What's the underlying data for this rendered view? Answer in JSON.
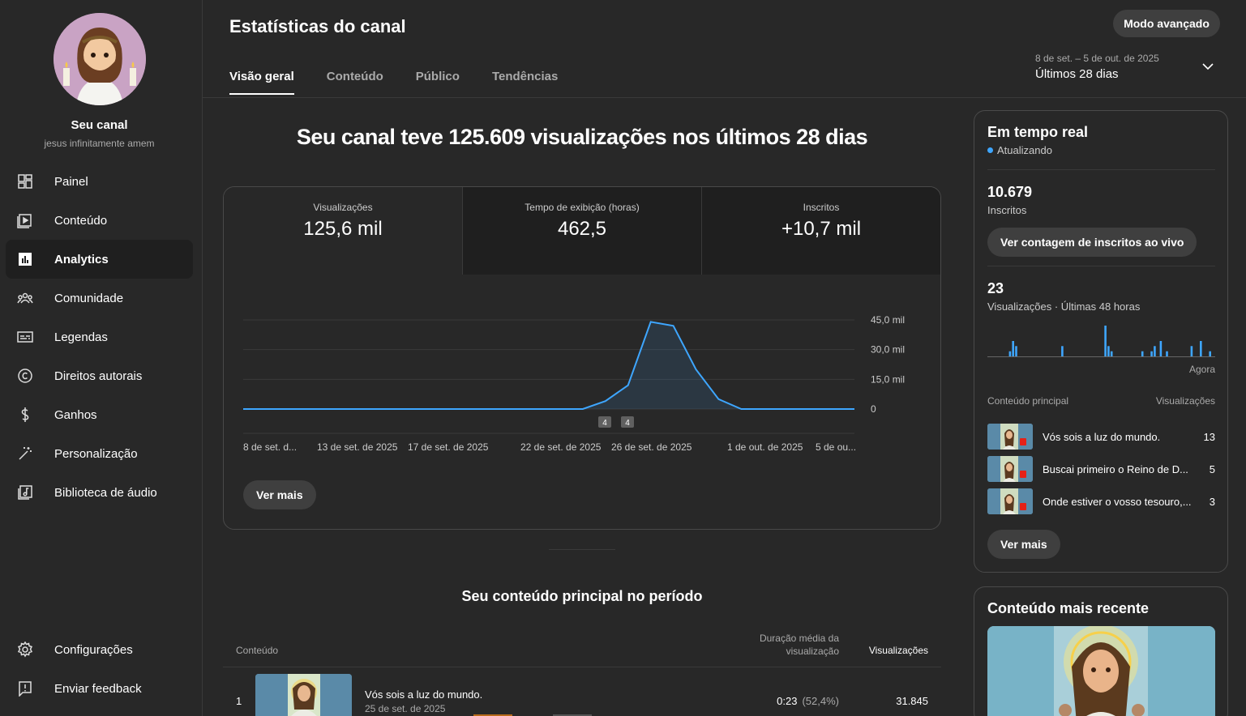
{
  "sidebar": {
    "channel_name": "Seu canal",
    "channel_handle": "jesus infinitamente amem",
    "items": [
      {
        "label": "Painel",
        "icon": "dashboard-icon"
      },
      {
        "label": "Conteúdo",
        "icon": "content-icon"
      },
      {
        "label": "Analytics",
        "icon": "analytics-icon",
        "active": true
      },
      {
        "label": "Comunidade",
        "icon": "community-icon"
      },
      {
        "label": "Legendas",
        "icon": "subtitles-icon"
      },
      {
        "label": "Direitos autorais",
        "icon": "copyright-icon"
      },
      {
        "label": "Ganhos",
        "icon": "dollar-icon"
      },
      {
        "label": "Personalização",
        "icon": "magic-wand-icon"
      },
      {
        "label": "Biblioteca de áudio",
        "icon": "audio-library-icon"
      }
    ],
    "bottom_items": [
      {
        "label": "Configurações",
        "icon": "gear-icon"
      },
      {
        "label": "Enviar feedback",
        "icon": "feedback-icon"
      }
    ]
  },
  "header": {
    "title": "Estatísticas do canal",
    "advanced_button": "Modo avançado",
    "tabs": [
      "Visão geral",
      "Conteúdo",
      "Público",
      "Tendências"
    ],
    "period_range": "8 de set. – 5 de out. de 2025",
    "period_label": "Últimos 28 dias"
  },
  "main": {
    "headline": "Seu canal teve 125.609 visualizações nos últimos 28 dias",
    "metrics": [
      {
        "label": "Visualizações",
        "value": "125,6 mil"
      },
      {
        "label": "Tempo de exibição (horas)",
        "value": "462,5"
      },
      {
        "label": "Inscritos",
        "value": "+10,7 mil"
      }
    ],
    "see_more": "Ver mais",
    "top_content_title": "Seu conteúdo principal no período",
    "table": {
      "col_content": "Conteúdo",
      "col_duration": "Duração média da visualização",
      "col_views": "Visualizações",
      "rows": [
        {
          "rank": "1",
          "title": "Vós sois a luz do mundo.",
          "date": "25 de set. de 2025",
          "duration": "0:23",
          "pct": "(52,4%)",
          "views": "31.845"
        }
      ]
    }
  },
  "chart_data": {
    "type": "area",
    "x_ticks": [
      "8 de set. d...",
      "13 de set. de 2025",
      "17 de set. de 2025",
      "22 de set. de 2025",
      "26 de set. de 2025",
      "1 de out. de 2025",
      "5 de ou..."
    ],
    "y_ticks": [
      "45,0 mil",
      "30,0 mil",
      "15,0 mil",
      "0"
    ],
    "ylim": [
      0,
      45000
    ],
    "values": [
      0,
      0,
      0,
      0,
      0,
      0,
      0,
      0,
      0,
      0,
      0,
      0,
      0,
      0,
      0,
      0,
      4000,
      12000,
      44000,
      42000,
      20000,
      5000,
      0,
      0,
      0,
      0,
      0,
      0
    ],
    "markers": [
      "4",
      "4"
    ],
    "color": "#3ea6ff"
  },
  "realtime": {
    "title": "Em tempo real",
    "updating": "Atualizando",
    "subscribers": "10.679",
    "subscribers_label": "Inscritos",
    "live_count_button": "Ver contagem de inscritos ao vivo",
    "views": "23",
    "views_label": "Visualizações · Últimas 48 horas",
    "now_label": "Agora",
    "bars": [
      0,
      0,
      0,
      0,
      0,
      0,
      0,
      1,
      3,
      2,
      0,
      0,
      0,
      0,
      0,
      0,
      0,
      0,
      0,
      0,
      0,
      0,
      0,
      0,
      2,
      0,
      0,
      0,
      0,
      0,
      0,
      0,
      0,
      0,
      0,
      0,
      0,
      0,
      6,
      2,
      1,
      0,
      0,
      0,
      0,
      0,
      0,
      0,
      0,
      0,
      1,
      0,
      0,
      1,
      2,
      0,
      3,
      0,
      1,
      0,
      0,
      0,
      0,
      0,
      0,
      0,
      2,
      0,
      0,
      3,
      0,
      0,
      1,
      0
    ],
    "head_content": "Conteúdo principal",
    "head_views": "Visualizações",
    "items": [
      {
        "title": "Vós sois a luz do mundo.",
        "views": "13"
      },
      {
        "title": "Buscai primeiro o Reino de D...",
        "views": "5"
      },
      {
        "title": "Onde estiver o vosso tesouro,...",
        "views": "3"
      }
    ],
    "see_more": "Ver mais"
  },
  "recent": {
    "title": "Conteúdo mais recente"
  }
}
